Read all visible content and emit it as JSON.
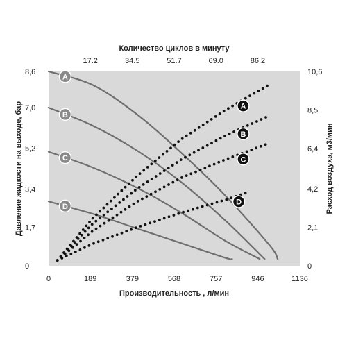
{
  "chart_data": {
    "type": "line",
    "x_axis": {
      "label": "Производительность , л/мин",
      "ticks": [
        "0",
        "189",
        "379",
        "568",
        "757",
        "946",
        "1136"
      ],
      "range": [
        0,
        1136
      ]
    },
    "x_top_axis": {
      "label": "Количество циклов в минуту",
      "ticks": [
        "17.2",
        "34.5",
        "51.7",
        "69.0",
        "86.2"
      ],
      "tick_positions_lpm": [
        189,
        379,
        568,
        757,
        946
      ]
    },
    "y_left_axis": {
      "label": "Давление жидкости на выходе, бар",
      "ticks": [
        "0",
        "1,7",
        "3,4",
        "5,2",
        "7,0",
        "8,6"
      ],
      "tick_values": [
        0,
        1.7,
        3.4,
        5.2,
        7.0,
        8.6
      ],
      "range": [
        0,
        8.6
      ]
    },
    "y_right_axis": {
      "label": "Расход воздуха, м3/мин",
      "ticks": [
        "0",
        "2,1",
        "4,2",
        "6,4",
        "8,5",
        "10,6"
      ],
      "tick_values": [
        0,
        2.1,
        4.2,
        6.4,
        8.5,
        10.6
      ],
      "range": [
        0,
        10.6
      ]
    },
    "grid": false,
    "background": "#d9d9d9",
    "series_line_color": "#6e6e6e",
    "series_dot_color": "#111111",
    "performance_curves": [
      {
        "name": "A",
        "points": [
          [
            0,
            8.6
          ],
          [
            200,
            8.0
          ],
          [
            400,
            6.7
          ],
          [
            600,
            5.0
          ],
          [
            800,
            3.1
          ],
          [
            1000,
            0.9
          ],
          [
            1036,
            0.3
          ]
        ]
      },
      {
        "name": "B",
        "points": [
          [
            0,
            7.0
          ],
          [
            200,
            6.2
          ],
          [
            400,
            5.1
          ],
          [
            600,
            3.7
          ],
          [
            800,
            2.0
          ],
          [
            977,
            0.3
          ]
        ]
      },
      {
        "name": "C",
        "points": [
          [
            0,
            5.05
          ],
          [
            200,
            4.35
          ],
          [
            400,
            3.45
          ],
          [
            600,
            2.35
          ],
          [
            800,
            1.1
          ],
          [
            955,
            0.3
          ]
        ]
      },
      {
        "name": "D",
        "points": [
          [
            0,
            2.85
          ],
          [
            200,
            2.3
          ],
          [
            400,
            1.65
          ],
          [
            600,
            1.0
          ],
          [
            800,
            0.35
          ],
          [
            830,
            0.3
          ]
        ]
      }
    ],
    "air_consumption_curves": [
      {
        "name": "A",
        "points": [
          [
            40,
            0.3
          ],
          [
            200,
            2.6
          ],
          [
            400,
            4.9
          ],
          [
            600,
            6.9
          ],
          [
            800,
            8.5
          ],
          [
            1000,
            9.9
          ]
        ]
      },
      {
        "name": "B",
        "points": [
          [
            40,
            0.3
          ],
          [
            200,
            2.3
          ],
          [
            400,
            4.2
          ],
          [
            600,
            5.8
          ],
          [
            800,
            7.1
          ],
          [
            1000,
            8.2
          ]
        ]
      },
      {
        "name": "C",
        "points": [
          [
            40,
            0.3
          ],
          [
            200,
            1.9
          ],
          [
            400,
            3.5
          ],
          [
            600,
            4.8
          ],
          [
            800,
            5.8
          ],
          [
            1000,
            6.7
          ]
        ]
      },
      {
        "name": "D",
        "points": [
          [
            40,
            0.3
          ],
          [
            200,
            1.2
          ],
          [
            400,
            2.1
          ],
          [
            600,
            2.9
          ],
          [
            800,
            3.6
          ],
          [
            900,
            4.0
          ]
        ]
      }
    ]
  }
}
